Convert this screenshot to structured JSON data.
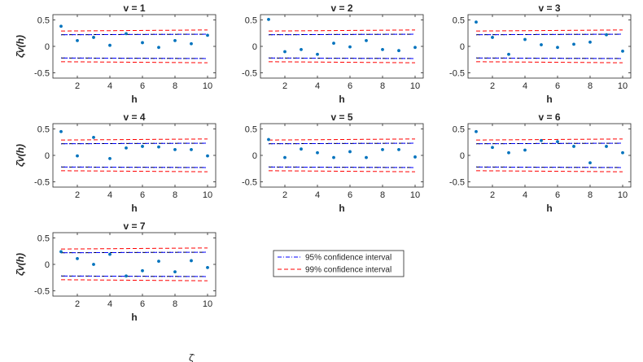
{
  "colors": {
    "points": "#0072BD",
    "ci95_upper": "#0000FF",
    "ci95_lower": "#000000",
    "ci99": "#FF0000",
    "axes": "#262626",
    "background": "#FFFFFF"
  },
  "legend": {
    "entries": [
      "95% confidence interval",
      "99% confidence interval"
    ],
    "placement": "center (empty grid cell row 3)"
  },
  "bottom_caption": "ζ̂",
  "chart_data": [
    {
      "type": "scatter",
      "title": "v = 1",
      "xlabel": "h",
      "ylabel": "ζ̂v(h)",
      "xlim": [
        0.5,
        10.5
      ],
      "ylim": [
        -0.6,
        0.6
      ],
      "xticks": [
        "2",
        "4",
        "6",
        "8",
        "10"
      ],
      "yticks": [
        "0.5",
        "0",
        "-0.5"
      ],
      "x": [
        1,
        2,
        3,
        4,
        5,
        6,
        7,
        8,
        9,
        10
      ],
      "values": [
        0.38,
        0.11,
        0.17,
        0.02,
        0.24,
        0.07,
        -0.02,
        0.11,
        0.05,
        0.21
      ],
      "ci95": [
        0.22,
        0.23
      ],
      "ci99": [
        0.29,
        0.31
      ]
    },
    {
      "type": "scatter",
      "title": "v = 2",
      "xlabel": "h",
      "ylabel": "",
      "xlim": [
        0.5,
        10.5
      ],
      "ylim": [
        -0.6,
        0.6
      ],
      "xticks": [
        "2",
        "4",
        "6",
        "8",
        "10"
      ],
      "yticks": [
        "0.5",
        "0",
        "-0.5"
      ],
      "x": [
        1,
        2,
        3,
        4,
        5,
        6,
        7,
        8,
        9,
        10
      ],
      "values": [
        0.51,
        -0.1,
        -0.06,
        -0.15,
        0.06,
        -0.01,
        0.11,
        -0.06,
        -0.08,
        -0.02
      ],
      "ci95": [
        0.22,
        0.23
      ],
      "ci99": [
        0.29,
        0.31
      ]
    },
    {
      "type": "scatter",
      "title": "v = 3",
      "xlabel": "h",
      "ylabel": "",
      "xlim": [
        0.5,
        10.5
      ],
      "ylim": [
        -0.6,
        0.6
      ],
      "xticks": [
        "2",
        "4",
        "6",
        "8",
        "10"
      ],
      "yticks": [
        "0.5",
        "0",
        "-0.5"
      ],
      "x": [
        1,
        2,
        3,
        4,
        5,
        6,
        7,
        8,
        9,
        10
      ],
      "values": [
        0.46,
        0.17,
        -0.15,
        0.13,
        0.03,
        -0.02,
        0.04,
        0.08,
        0.22,
        -0.09
      ],
      "ci95": [
        0.22,
        0.23
      ],
      "ci99": [
        0.29,
        0.31
      ]
    },
    {
      "type": "scatter",
      "title": "v = 4",
      "xlabel": "h",
      "ylabel": "ζ̂v(h)",
      "xlim": [
        0.5,
        10.5
      ],
      "ylim": [
        -0.6,
        0.6
      ],
      "xticks": [
        "2",
        "4",
        "6",
        "8",
        "10"
      ],
      "yticks": [
        "0.5",
        "0",
        "-0.5"
      ],
      "x": [
        1,
        2,
        3,
        4,
        5,
        6,
        7,
        8,
        9,
        10
      ],
      "values": [
        0.45,
        -0.01,
        0.34,
        -0.06,
        0.14,
        0.17,
        0.16,
        0.11,
        0.11,
        -0.01
      ],
      "ci95": [
        0.22,
        0.23
      ],
      "ci99": [
        0.29,
        0.31
      ]
    },
    {
      "type": "scatter",
      "title": "v = 5",
      "xlabel": "h",
      "ylabel": "",
      "xlim": [
        0.5,
        10.5
      ],
      "ylim": [
        -0.6,
        0.6
      ],
      "xticks": [
        "2",
        "4",
        "6",
        "8",
        "10"
      ],
      "yticks": [
        "0.5",
        "0",
        "-0.5"
      ],
      "x": [
        1,
        2,
        3,
        4,
        5,
        6,
        7,
        8,
        9,
        10
      ],
      "values": [
        0.3,
        -0.04,
        0.12,
        0.05,
        -0.04,
        0.07,
        -0.04,
        0.11,
        0.11,
        -0.03
      ],
      "ci95": [
        0.22,
        0.23
      ],
      "ci99": [
        0.29,
        0.31
      ]
    },
    {
      "type": "scatter",
      "title": "v = 6",
      "xlabel": "h",
      "ylabel": "",
      "xlim": [
        0.5,
        10.5
      ],
      "ylim": [
        -0.6,
        0.6
      ],
      "xticks": [
        "2",
        "4",
        "6",
        "8",
        "10"
      ],
      "yticks": [
        "0.5",
        "0",
        "-0.5"
      ],
      "x": [
        1,
        2,
        3,
        4,
        5,
        6,
        7,
        8,
        9,
        10
      ],
      "values": [
        0.45,
        0.15,
        0.05,
        0.1,
        0.28,
        0.26,
        0.17,
        -0.14,
        0.17,
        0.05
      ],
      "ci95": [
        0.22,
        0.23
      ],
      "ci99": [
        0.29,
        0.31
      ]
    },
    {
      "type": "scatter",
      "title": "v = 7",
      "xlabel": "h",
      "ylabel": "ζ̂v(h)",
      "xlim": [
        0.5,
        10.5
      ],
      "ylim": [
        -0.6,
        0.6
      ],
      "xticks": [
        "2",
        "4",
        "6",
        "8",
        "10"
      ],
      "yticks": [
        "0.5",
        "0",
        "-0.5"
      ],
      "x": [
        1,
        2,
        3,
        4,
        5,
        6,
        7,
        8,
        9,
        10
      ],
      "values": [
        0.24,
        0.11,
        0.0,
        0.19,
        -0.22,
        -0.12,
        0.06,
        -0.14,
        0.07,
        -0.06
      ],
      "ci95": [
        0.22,
        0.23
      ],
      "ci99": [
        0.29,
        0.31
      ]
    }
  ]
}
